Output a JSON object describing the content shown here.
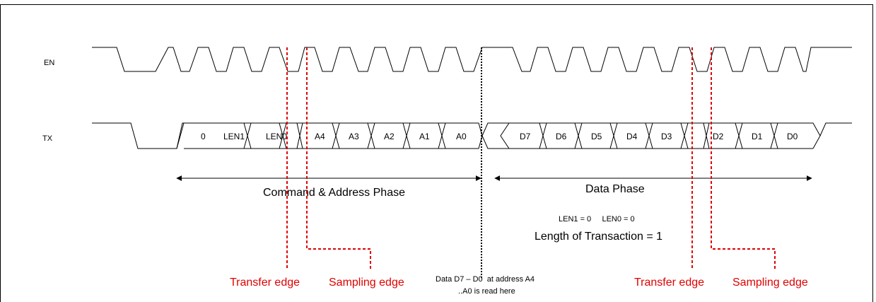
{
  "signals": {
    "en": "EN",
    "tx": "TX"
  },
  "tx_bits": [
    "0",
    "LEN1",
    "LEN0",
    "A4",
    "A3",
    "A2",
    "A1",
    "A0",
    "D7",
    "D6",
    "D5",
    "D4",
    "D3",
    "D2",
    "D1",
    "D0"
  ],
  "phases": {
    "command": "Command & Address Phase",
    "data": "Data Phase"
  },
  "len_note": "LEN1 = 0     LEN0 = 0",
  "length_note": "Length of Transaction = 1",
  "markers": {
    "transfer_left": "Transfer edge",
    "sampling_left": "Sampling edge",
    "transfer_right": "Transfer edge",
    "sampling_right": "Sampling edge"
  },
  "read_note": {
    "line1": "Data D7 – D0  at address A4",
    "line2": "..A0 is read here"
  },
  "colors": {
    "marker": "#e00000",
    "signal": "#000000"
  }
}
